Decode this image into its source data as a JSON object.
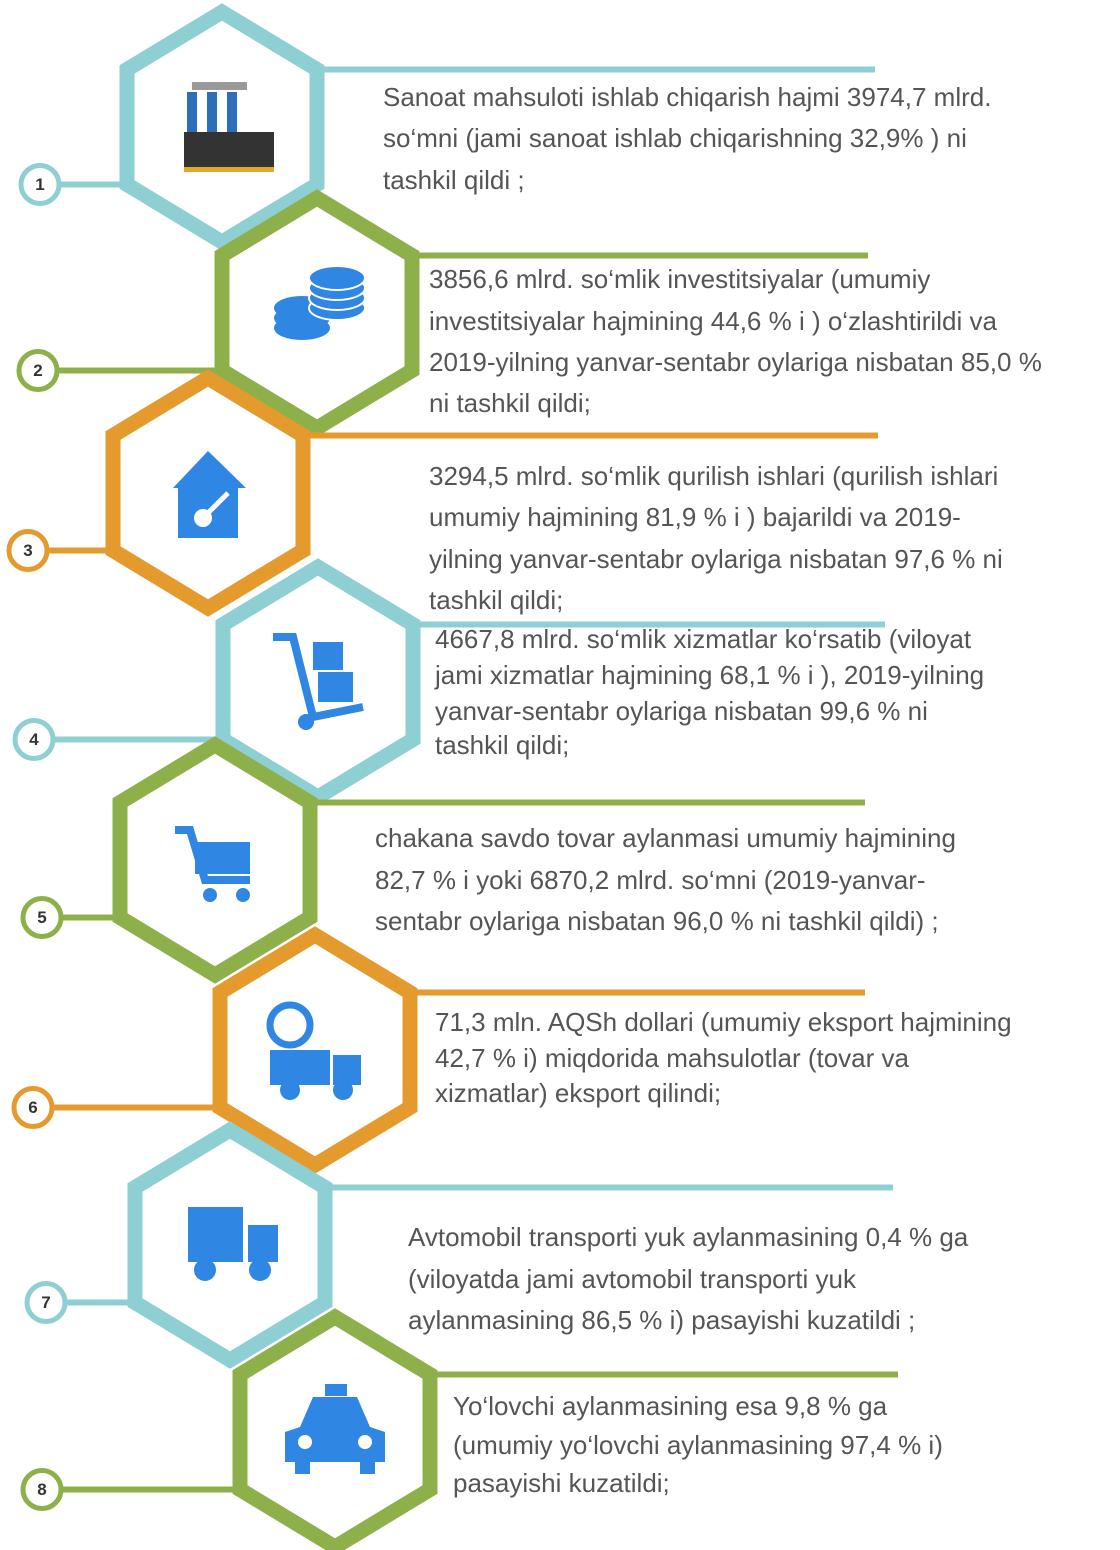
{
  "items": [
    {
      "number": "1",
      "color": "#8ecfd3",
      "lines": [
        "Sanoat mahsuloti ishlab chiqarish hajmi  3974,7 mlrd.",
        "so‘mni (jami sanoat ishlab chiqarishning 32,9% ) ni",
        "tashkil qildi ;"
      ]
    },
    {
      "number": "2",
      "color": "#8db04a",
      "lines": [
        "3856,6 mlrd. so‘mlik investitsiyalar (umumiy",
        "investitsiyalar hajmining 44,6 % i ) o‘zlashtirildi va",
        "2019-yilning yanvar-sentabr oylariga nisbatan  85,0 %",
        "ni tashkil qildi;"
      ]
    },
    {
      "number": "3",
      "color": "#e49a2c",
      "lines": [
        "3294,5 mlrd. so‘mlik  qurilish  ishlari  (qurilish  ishlari",
        "umumiy hajmining 81,9 % i ) bajarildi va 2019-",
        "yilning yanvar-sentabr oylariga nisbatan 97,6 % ni",
        "tashkil qildi;"
      ]
    },
    {
      "number": "4",
      "color": "#8ecfd3",
      "lines": [
        "4667,8 mlrd. so‘mlik xizmatlar ko‘rsatib (viloyat",
        "jami xizmatlar hajmining 68,1 % i ), 2019-yilning",
        "yanvar-sentabr oylariga nisbatan  99,6 % ni",
        "tashkil qildi;"
      ]
    },
    {
      "number": "5",
      "color": "#8db04a",
      "lines": [
        "chakana savdo tovar aylanmasi umumiy hajmining",
        "82,7 % i yoki 6870,2 mlrd. so‘mni (2019-yanvar-",
        "sentabr oylariga nisbatan  96,0 % ni tashkil qildi) ;"
      ]
    },
    {
      "number": "6",
      "color": "#e49a2c",
      "lines": [
        "71,3 mln. AQSh dollari (umumiy eksport hajmining",
        "42,7 % i) miqdorida mahsulotlar (tovar va",
        "xizmatlar) eksport qilindi;"
      ]
    },
    {
      "number": "7",
      "color": "#8ecfd3",
      "lines": [
        "Avtomobil transporti yuk aylanmasining 0,4 % ga",
        "(viloyatda jami avtomobil transporti yuk",
        "aylanmasining 86,5 % i) pasayishi kuzatildi ;"
      ]
    },
    {
      "number": "8",
      "color": "#8db04a",
      "lines": [
        "Yo‘lovchi  aylanmasining  esa  9,8 % ga",
        "(umumiy  yo‘lovchi aylanmasining 97,4 % i)",
        "pasayishi kuzatildi;"
      ]
    }
  ]
}
